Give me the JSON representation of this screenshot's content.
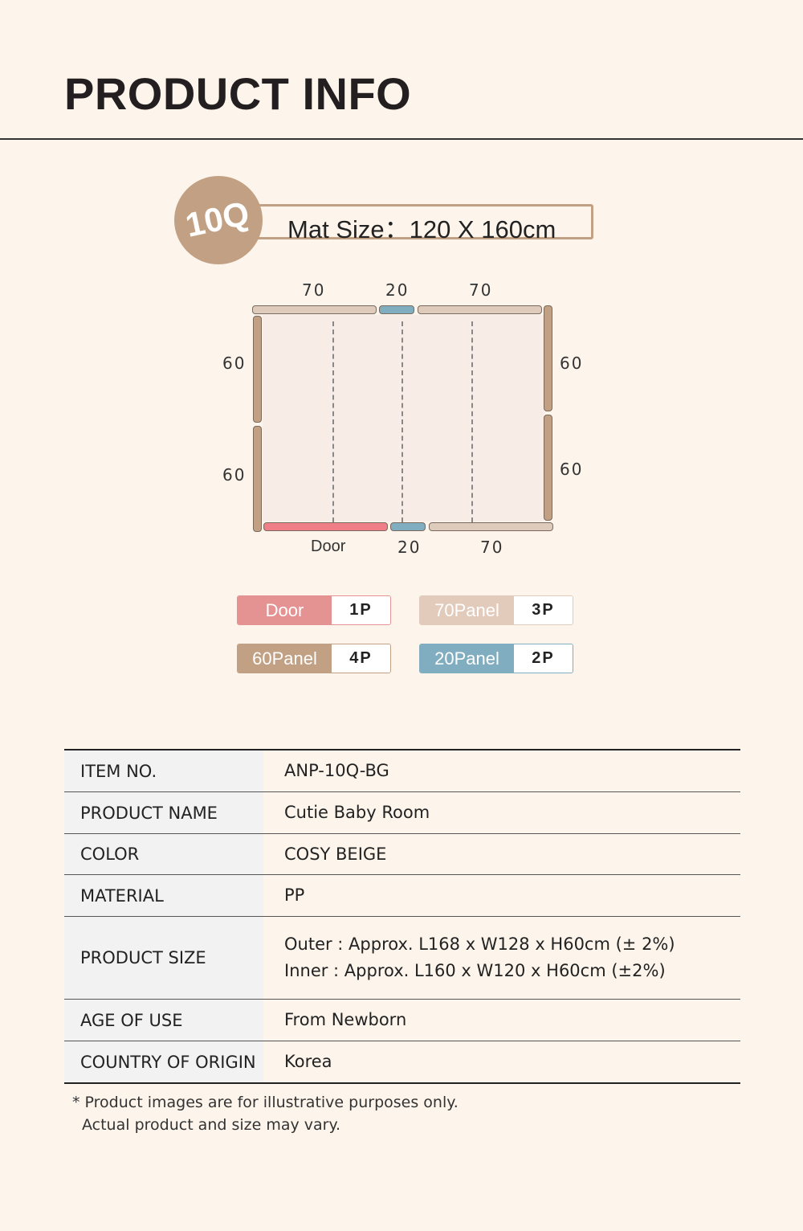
{
  "title": "PRODUCT INFO",
  "badge": "10Q",
  "mat_size": "Mat Size：120 X 160cm",
  "diagram": {
    "top": [
      "70",
      "20",
      "70"
    ],
    "left": [
      "60",
      "60"
    ],
    "right": [
      "60",
      "60"
    ],
    "bottom": [
      "Door",
      "20",
      "70"
    ]
  },
  "colors": {
    "door": "#e59293",
    "panel70": "#e3cbbc",
    "panel60": "#c1a083",
    "panel20": "#80adbf"
  },
  "legend": [
    {
      "name": "Door",
      "qty": "1P"
    },
    {
      "name": "70Panel",
      "qty": "3P"
    },
    {
      "name": "60Panel",
      "qty": "4P"
    },
    {
      "name": "20Panel",
      "qty": "2P"
    }
  ],
  "table": [
    {
      "k": "ITEM NO.",
      "v": [
        "ANP-10Q-BG"
      ]
    },
    {
      "k": "PRODUCT NAME",
      "v": [
        "Cutie Baby Room"
      ]
    },
    {
      "k": "COLOR",
      "v": [
        "COSY BEIGE"
      ]
    },
    {
      "k": "MATERIAL",
      "v": [
        "PP"
      ]
    },
    {
      "k": "PRODUCT SIZE",
      "v": [
        "Outer : Approx. L168 x W128 x H60cm (± 2%)",
        "Inner : Approx. L160 x W120 x H60cm (±2%)"
      ]
    },
    {
      "k": "AGE OF USE",
      "v": [
        "From Newborn"
      ]
    },
    {
      "k": "COUNTRY OF ORIGIN",
      "v": [
        "Korea"
      ]
    }
  ],
  "note": [
    "* Product images are for illustrative purposes only.",
    "Actual product and size may vary."
  ]
}
